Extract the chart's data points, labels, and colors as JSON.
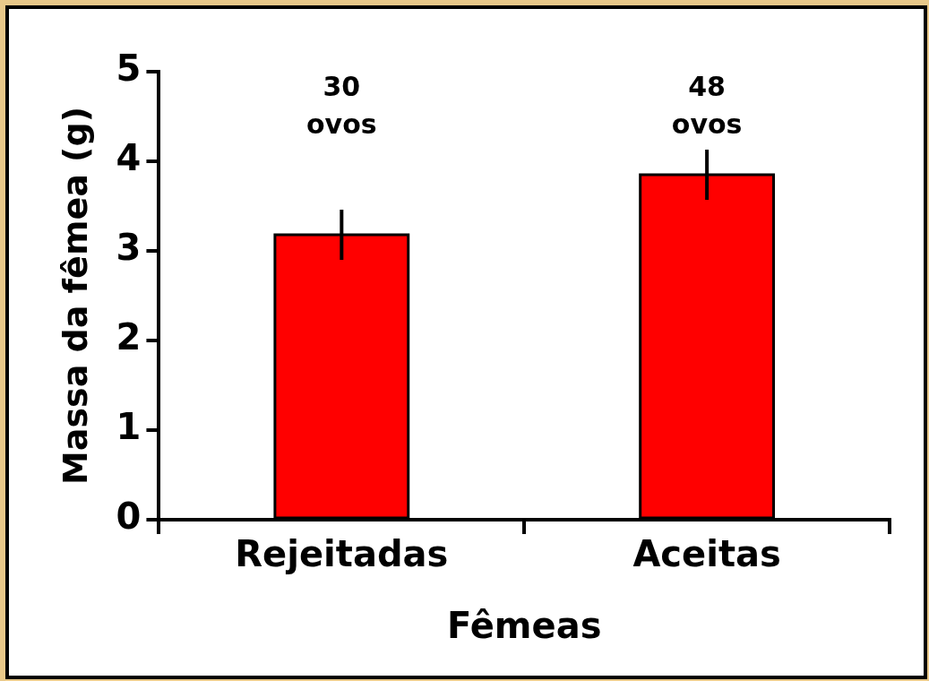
{
  "chart_data": {
    "type": "bar",
    "xlabel": "Fêmeas",
    "ylabel": "Massa da fêmea (g)",
    "categories": [
      "Rejeitadas",
      "Aceitas"
    ],
    "values": [
      3.18,
      3.85
    ],
    "errors": [
      0.28,
      0.28
    ],
    "color": "#ff0000",
    "ylim": [
      0,
      5
    ],
    "yticks": [
      0,
      1,
      2,
      3,
      4,
      5
    ],
    "grid": false,
    "legend": false,
    "annotations": [
      "30\novos",
      "48\novos"
    ]
  }
}
